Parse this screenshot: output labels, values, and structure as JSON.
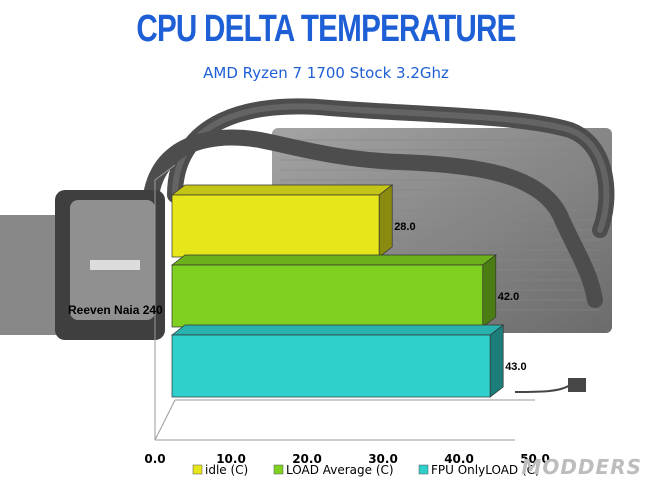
{
  "chart_data": {
    "type": "bar",
    "orientation": "horizontal",
    "style": "3d",
    "title": "CPU DELTA TEMPERATURE",
    "subtitle": "AMD Ryzen 7 1700 Stock 3.2Ghz",
    "categories": [
      "Reeven Naia 240"
    ],
    "series": [
      {
        "name": "idle (C)",
        "values": [
          28.0
        ],
        "color": "#e6e61a",
        "label": "28.0"
      },
      {
        "name": "LOAD Average (C)",
        "values": [
          42.0
        ],
        "color": "#7fd020",
        "label": "42.0"
      },
      {
        "name": "FPU OnlyLOAD  (C)",
        "values": [
          43.0
        ],
        "color": "#2fd0cc",
        "label": "43.0"
      }
    ],
    "xlim": [
      0,
      50
    ],
    "xticks": [
      "0.0",
      "10.0",
      "20.0",
      "30.0",
      "40.0",
      "50.0"
    ],
    "grid": false,
    "legend_position": "bottom"
  },
  "colors": {
    "title": "#1f5fd6",
    "idle": "#e6e61a",
    "load": "#7fd020",
    "fpu": "#2fd0cc"
  },
  "watermark": "MODDERS"
}
